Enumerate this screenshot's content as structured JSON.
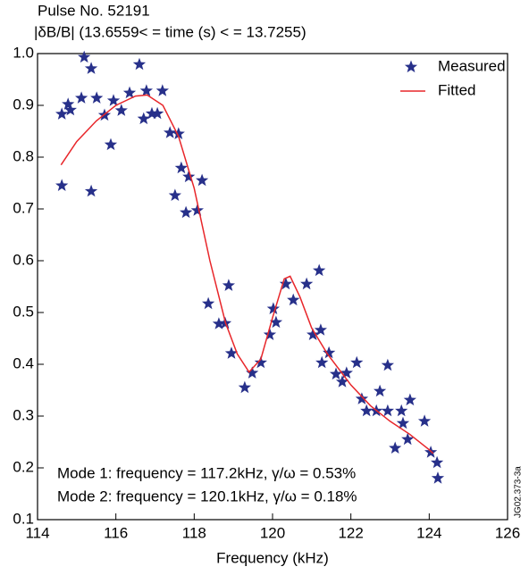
{
  "chart_data": {
    "type": "scatter",
    "title": "Pulse No. 52191",
    "subtitle": "|δB/B| (13.6559< = time (s) < = 13.7255)",
    "x_label": "Frequency (kHz)",
    "annotations": [
      "Mode 1: frequency = 117.2kHz, γ/ω = 0.53%",
      "Mode 2: frequency = 120.1kHz, γ/ω = 0.18%"
    ],
    "figure_id": "JG02.373-3a",
    "xlim": [
      114,
      126
    ],
    "xticks": [
      114,
      116,
      118,
      120,
      122,
      124,
      126
    ],
    "ylim": [
      0.1,
      1
    ],
    "yticks": [
      0.1,
      0.2,
      0.3,
      0.4,
      0.5,
      0.6,
      0.7,
      0.8,
      0.9,
      {
        "value": 1,
        "label": "1.0"
      }
    ],
    "legend": "upper right",
    "series": [
      {
        "name": "Measured",
        "type": "scatter",
        "color": "#27308a",
        "x": [
          114.62,
          114.62,
          114.78,
          114.84,
          115.12,
          115.19,
          115.37,
          115.37,
          115.51,
          115.71,
          115.87,
          115.94,
          116.14,
          116.35,
          116.6,
          116.71,
          116.78,
          116.92,
          117.06,
          117.19,
          117.38,
          117.51,
          117.6,
          117.67,
          117.79,
          117.86,
          118.08,
          118.2,
          118.36,
          118.63,
          118.79,
          118.88,
          118.95,
          119.29,
          119.48,
          119.7,
          119.93,
          120.02,
          120.09,
          120.34,
          120.53,
          120.87,
          121.03,
          121.19,
          121.23,
          121.26,
          121.44,
          121.62,
          121.78,
          121.89,
          122.15,
          122.28,
          122.4,
          122.65,
          122.74,
          122.94,
          122.94,
          123.13,
          123.29,
          123.33,
          123.45,
          123.51,
          123.88,
          124.04,
          124.2,
          124.22
        ],
        "values": [
          0.883,
          0.745,
          0.902,
          0.891,
          0.914,
          0.993,
          0.971,
          0.734,
          0.914,
          0.881,
          0.824,
          0.909,
          0.89,
          0.924,
          0.979,
          0.874,
          0.928,
          0.884,
          0.884,
          0.928,
          0.847,
          0.726,
          0.845,
          0.779,
          0.693,
          0.762,
          0.697,
          0.755,
          0.517,
          0.478,
          0.479,
          0.552,
          0.421,
          0.355,
          0.383,
          0.403,
          0.457,
          0.507,
          0.481,
          0.555,
          0.524,
          0.555,
          0.457,
          0.581,
          0.466,
          0.403,
          0.422,
          0.381,
          0.366,
          0.383,
          0.403,
          0.333,
          0.31,
          0.31,
          0.348,
          0.31,
          0.398,
          0.238,
          0.31,
          0.286,
          0.255,
          0.331,
          0.29,
          0.23,
          0.21,
          0.18
        ]
      },
      {
        "name": "Fitted",
        "type": "line",
        "color": "#e8262a",
        "x": [
          114.6,
          115,
          115.5,
          116,
          116.5,
          116.8,
          117.2,
          117.6,
          118,
          118.4,
          118.8,
          119.1,
          119.4,
          119.7,
          120,
          120.3,
          120.45,
          120.7,
          121,
          121.4,
          122,
          122.5,
          123,
          123.5,
          124,
          124.1
        ],
        "values": [
          0.785,
          0.83,
          0.87,
          0.9,
          0.918,
          0.92,
          0.9,
          0.84,
          0.74,
          0.6,
          0.48,
          0.42,
          0.385,
          0.41,
          0.49,
          0.565,
          0.57,
          0.53,
          0.47,
          0.42,
          0.36,
          0.32,
          0.29,
          0.265,
          0.235,
          0.228
        ]
      }
    ]
  }
}
